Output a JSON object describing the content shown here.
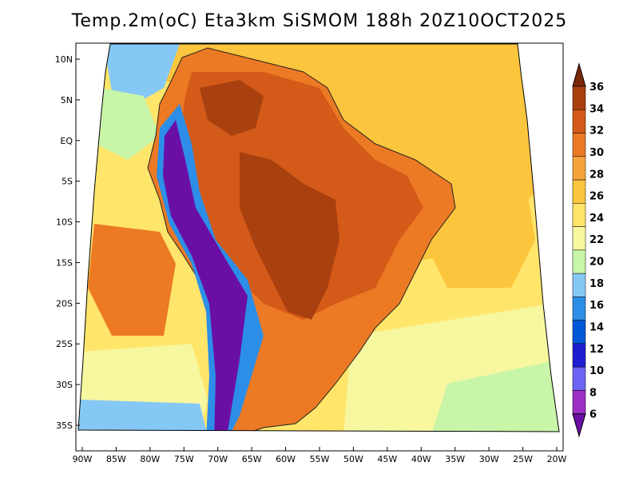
{
  "title": "Temp.2m(oC) Eta3km SiSMOM 188h 20Z10OCT2025",
  "x_ticks": [
    "90W",
    "85W",
    "80W",
    "75W",
    "70W",
    "65W",
    "60W",
    "55W",
    "50W",
    "45W",
    "40W",
    "35W",
    "30W",
    "25W",
    "20W"
  ],
  "y_ticks": [
    "10N",
    "5N",
    "EQ",
    "5S",
    "10S",
    "15S",
    "20S",
    "25S",
    "30S",
    "35S"
  ],
  "colorbar": {
    "labels": [
      "6",
      "8",
      "10",
      "12",
      "14",
      "16",
      "18",
      "20",
      "22",
      "24",
      "26",
      "28",
      "30",
      "32",
      "34",
      "36"
    ],
    "colors": [
      "#6a0fa5",
      "#9b2fc4",
      "#6d64f3",
      "#1e1ed0",
      "#0057d8",
      "#2d8ee8",
      "#85c8f6",
      "#c8f5a8",
      "#f7f7a0",
      "#ffe56a",
      "#fcc53e",
      "#f7a33c",
      "#ec7a24",
      "#d45a19",
      "#a8400f",
      "#7a2908"
    ]
  },
  "map": {
    "fill_colors": {
      "ocean_warm": "#fcc53e",
      "ocean_mild": "#ffe56a",
      "ocean_cool": "#f7f7a0",
      "ocean_cold": "#c8f5a8",
      "ocean_coldest": "#85c8f6",
      "land_hot": "#ec7a24",
      "land_hotter": "#d45a19",
      "land_hottest": "#a8400f",
      "andes_cold": "#6a0fa5",
      "andes_mid": "#2d8ee8"
    }
  }
}
